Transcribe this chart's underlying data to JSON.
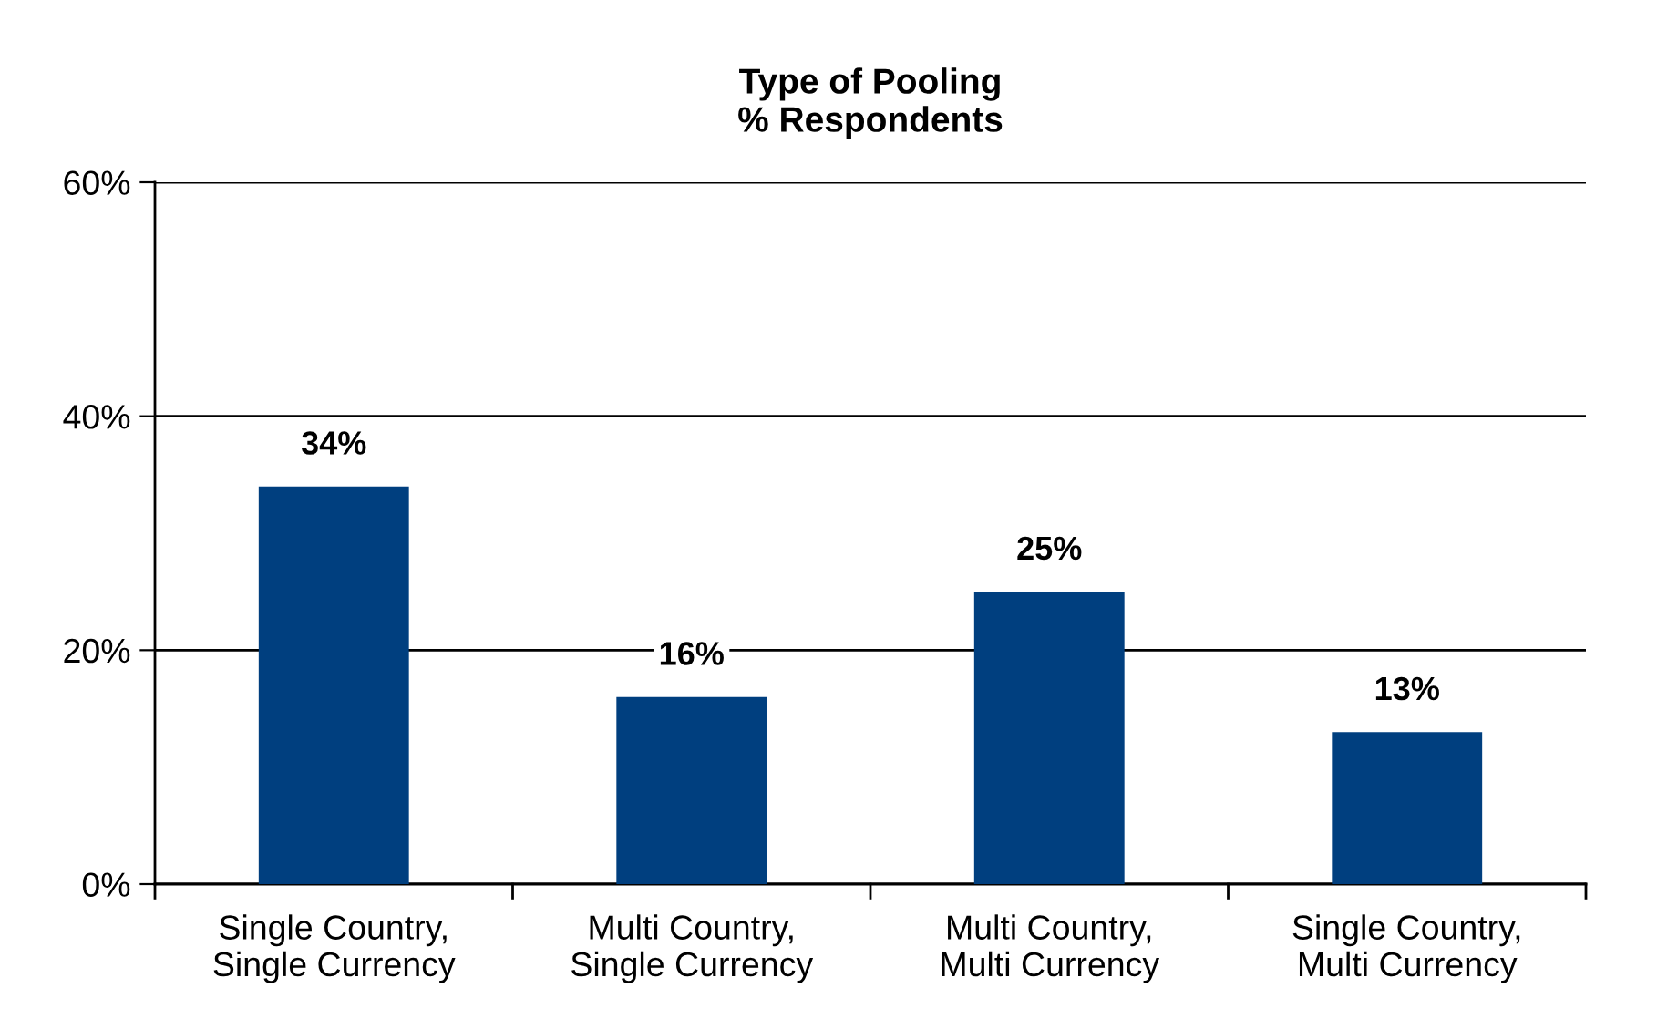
{
  "chart_data": {
    "type": "bar",
    "title": "Type of Pooling\n% Respondents",
    "categories": [
      "Single Country,\nSingle Currency",
      "Multi Country,\nSingle Currency",
      "Multi Country,\nMulti Currency",
      "Single Country,\nMulti Currency"
    ],
    "values": [
      34,
      16,
      25,
      13
    ],
    "color": "#003f7f",
    "ylim": [
      0,
      60
    ],
    "yticks": [
      {
        "value": 0,
        "label": "0%"
      },
      {
        "value": 20,
        "label": "20%"
      },
      {
        "value": 40,
        "label": "40%"
      },
      {
        "value": 60,
        "label": "60%"
      }
    ],
    "value_labels": [
      "34%",
      "16%",
      "25%",
      "13%"
    ],
    "grid": "y"
  }
}
